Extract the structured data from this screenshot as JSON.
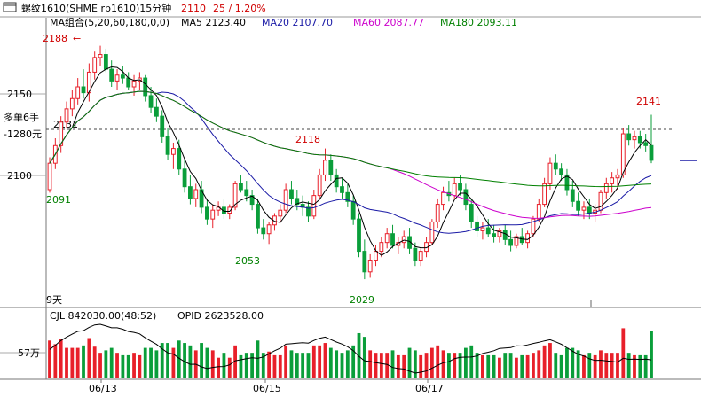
{
  "header": {
    "symbol": "螺纹1610(SHME rb1610)15分钟",
    "last_price": "2110",
    "change": "25 / 1.20%",
    "window_icon": "window-icon"
  },
  "ma_legend": {
    "title": "MA组合(5,20,60,180,0,0)",
    "items": [
      {
        "label": "MA5 2123.40",
        "color": "#000000"
      },
      {
        "label": "MA20 2107.70",
        "color": "#1a1aa6"
      },
      {
        "label": "MA60 2087.77",
        "color": "#cc00cc"
      },
      {
        "label": "MA180 2093.11",
        "color": "#008000"
      }
    ]
  },
  "position_info": {
    "line1": "多单6手",
    "line2": "-1280元",
    "entry": "2131"
  },
  "price_axis": {
    "ticks": [
      "2150",
      "2100"
    ]
  },
  "price_annotations": [
    {
      "text": "2188",
      "color": "#d00000"
    },
    {
      "text": "2118",
      "color": "#d00000"
    },
    {
      "text": "2141",
      "color": "#d00000"
    },
    {
      "text": "2091",
      "color": "#008000"
    },
    {
      "text": "2053",
      "color": "#008000"
    },
    {
      "text": "2029",
      "color": "#008000"
    }
  ],
  "days_label": "9天",
  "volume_legend": {
    "cjl": "CJL   842030.00(48:52)",
    "opid": "OPID  2623528.00"
  },
  "volume_axis": {
    "tick": "57万"
  },
  "date_labels": [
    "06/13",
    "06/15",
    "06/17"
  ],
  "colors": {
    "up": "#e8202a",
    "down": "#0a9e3a",
    "grid": "#9a9a9a",
    "accent": "#d00000"
  },
  "chart_data": {
    "type": "candlestick",
    "period": "15分钟",
    "ylim": [
      2020,
      2195
    ],
    "price_ticks": [
      2150,
      2100
    ],
    "position_line": 2131,
    "ohlc": [
      [
        2090,
        2112,
        2088,
        2108
      ],
      [
        2108,
        2125,
        2104,
        2120
      ],
      [
        2120,
        2140,
        2115,
        2136
      ],
      [
        2136,
        2150,
        2132,
        2145
      ],
      [
        2145,
        2158,
        2140,
        2152
      ],
      [
        2152,
        2166,
        2148,
        2160
      ],
      [
        2160,
        2172,
        2152,
        2156
      ],
      [
        2156,
        2176,
        2150,
        2170
      ],
      [
        2170,
        2184,
        2165,
        2180
      ],
      [
        2180,
        2188,
        2174,
        2182
      ],
      [
        2182,
        2186,
        2170,
        2172
      ],
      [
        2172,
        2178,
        2160,
        2164
      ],
      [
        2164,
        2172,
        2158,
        2168
      ],
      [
        2168,
        2174,
        2162,
        2166
      ],
      [
        2166,
        2170,
        2158,
        2160
      ],
      [
        2160,
        2168,
        2154,
        2164
      ],
      [
        2164,
        2170,
        2158,
        2166
      ],
      [
        2166,
        2168,
        2150,
        2154
      ],
      [
        2154,
        2160,
        2142,
        2146
      ],
      [
        2146,
        2152,
        2136,
        2140
      ],
      [
        2140,
        2144,
        2122,
        2126
      ],
      [
        2126,
        2132,
        2110,
        2114
      ],
      [
        2114,
        2122,
        2104,
        2118
      ],
      [
        2118,
        2124,
        2100,
        2104
      ],
      [
        2104,
        2110,
        2088,
        2092
      ],
      [
        2092,
        2100,
        2080,
        2084
      ],
      [
        2084,
        2094,
        2078,
        2090
      ],
      [
        2090,
        2096,
        2074,
        2078
      ],
      [
        2078,
        2084,
        2066,
        2070
      ],
      [
        2070,
        2080,
        2064,
        2076
      ],
      [
        2076,
        2082,
        2072,
        2078
      ],
      [
        2078,
        2084,
        2070,
        2074
      ],
      [
        2074,
        2080,
        2070,
        2078
      ],
      [
        2078,
        2096,
        2076,
        2094
      ],
      [
        2094,
        2100,
        2088,
        2090
      ],
      [
        2090,
        2096,
        2082,
        2086
      ],
      [
        2086,
        2090,
        2076,
        2080
      ],
      [
        2080,
        2084,
        2060,
        2064
      ],
      [
        2064,
        2070,
        2056,
        2060
      ],
      [
        2060,
        2068,
        2053,
        2066
      ],
      [
        2066,
        2074,
        2062,
        2072
      ],
      [
        2072,
        2080,
        2068,
        2076
      ],
      [
        2076,
        2094,
        2074,
        2090
      ],
      [
        2090,
        2096,
        2080,
        2084
      ],
      [
        2084,
        2090,
        2076,
        2080
      ],
      [
        2080,
        2086,
        2072,
        2078
      ],
      [
        2078,
        2082,
        2068,
        2072
      ],
      [
        2072,
        2090,
        2070,
        2086
      ],
      [
        2086,
        2104,
        2084,
        2100
      ],
      [
        2100,
        2118,
        2096,
        2110
      ],
      [
        2110,
        2114,
        2096,
        2100
      ],
      [
        2100,
        2104,
        2088,
        2092
      ],
      [
        2092,
        2098,
        2084,
        2088
      ],
      [
        2088,
        2094,
        2078,
        2082
      ],
      [
        2082,
        2086,
        2066,
        2070
      ],
      [
        2070,
        2074,
        2044,
        2048
      ],
      [
        2048,
        2056,
        2029,
        2034
      ],
      [
        2034,
        2046,
        2030,
        2042
      ],
      [
        2042,
        2052,
        2038,
        2048
      ],
      [
        2048,
        2058,
        2044,
        2054
      ],
      [
        2054,
        2064,
        2050,
        2060
      ],
      [
        2060,
        2066,
        2050,
        2052
      ],
      [
        2052,
        2058,
        2046,
        2054
      ],
      [
        2054,
        2062,
        2050,
        2058
      ],
      [
        2058,
        2064,
        2046,
        2050
      ],
      [
        2050,
        2054,
        2038,
        2042
      ],
      [
        2042,
        2050,
        2038,
        2048
      ],
      [
        2048,
        2058,
        2044,
        2054
      ],
      [
        2054,
        2070,
        2052,
        2068
      ],
      [
        2068,
        2084,
        2064,
        2080
      ],
      [
        2080,
        2092,
        2076,
        2088
      ],
      [
        2088,
        2096,
        2082,
        2086
      ],
      [
        2086,
        2098,
        2084,
        2094
      ],
      [
        2094,
        2100,
        2086,
        2090
      ],
      [
        2090,
        2094,
        2076,
        2080
      ],
      [
        2080,
        2084,
        2064,
        2068
      ],
      [
        2068,
        2072,
        2058,
        2062
      ],
      [
        2062,
        2068,
        2056,
        2064
      ],
      [
        2064,
        2070,
        2058,
        2060
      ],
      [
        2060,
        2066,
        2054,
        2058
      ],
      [
        2058,
        2064,
        2054,
        2062
      ],
      [
        2062,
        2066,
        2052,
        2056
      ],
      [
        2056,
        2062,
        2048,
        2052
      ],
      [
        2052,
        2060,
        2050,
        2058
      ],
      [
        2058,
        2064,
        2052,
        2054
      ],
      [
        2054,
        2062,
        2050,
        2060
      ],
      [
        2060,
        2072,
        2058,
        2070
      ],
      [
        2070,
        2084,
        2068,
        2080
      ],
      [
        2080,
        2098,
        2078,
        2094
      ],
      [
        2094,
        2112,
        2090,
        2108
      ],
      [
        2108,
        2114,
        2100,
        2104
      ],
      [
        2104,
        2108,
        2096,
        2100
      ],
      [
        2100,
        2104,
        2086,
        2090
      ],
      [
        2090,
        2096,
        2078,
        2082
      ],
      [
        2082,
        2088,
        2072,
        2076
      ],
      [
        2076,
        2082,
        2070,
        2078
      ],
      [
        2078,
        2084,
        2070,
        2074
      ],
      [
        2074,
        2080,
        2068,
        2076
      ],
      [
        2076,
        2090,
        2074,
        2088
      ],
      [
        2088,
        2098,
        2084,
        2094
      ],
      [
        2094,
        2102,
        2088,
        2098
      ],
      [
        2098,
        2104,
        2090,
        2100
      ],
      [
        2100,
        2132,
        2098,
        2128
      ],
      [
        2128,
        2134,
        2120,
        2124
      ],
      [
        2124,
        2130,
        2118,
        2126
      ],
      [
        2126,
        2130,
        2118,
        2122
      ],
      [
        2122,
        2128,
        2116,
        2120
      ],
      [
        2120,
        2141,
        2108,
        2110
      ]
    ],
    "volume_ylim": [
      0,
      1000000
    ],
    "volume_ticks": [
      570000
    ]
  }
}
